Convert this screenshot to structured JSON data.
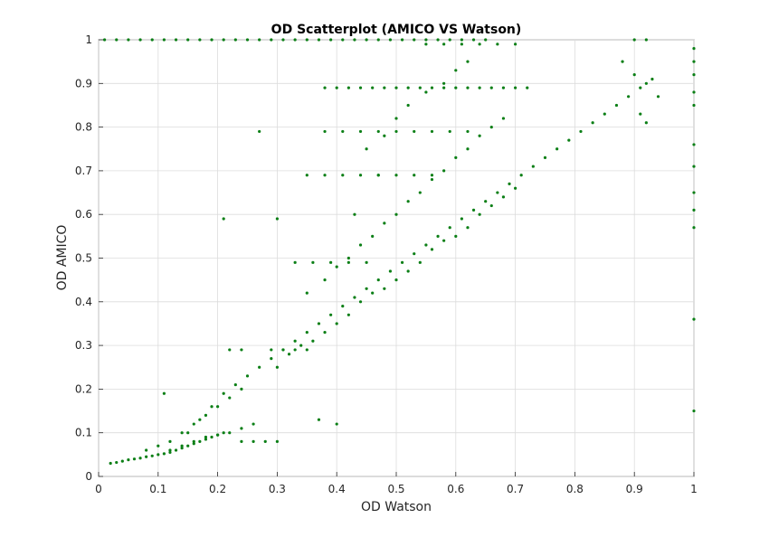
{
  "chart_data": {
    "type": "scatter",
    "title": "OD Scatterplot (AMICO VS Watson)",
    "xlabel": "OD Watson",
    "ylabel": "OD AMICO",
    "xlim": [
      0,
      1
    ],
    "ylim": [
      0,
      1
    ],
    "x_ticks": [
      "0",
      "0.1",
      "0.2",
      "0.3",
      "0.4",
      "0.5",
      "0.6",
      "0.7",
      "0.8",
      "0.9",
      "1"
    ],
    "y_ticks": [
      "0",
      "0.1",
      "0.2",
      "0.3",
      "0.4",
      "0.5",
      "0.6",
      "0.7",
      "0.8",
      "0.9",
      "1"
    ],
    "grid": true,
    "marker_color": "#0b7f16",
    "series": [
      {
        "points": [
          [
            0.02,
            0.03
          ],
          [
            0.03,
            0.032
          ],
          [
            0.04,
            0.035
          ],
          [
            0.05,
            0.038
          ],
          [
            0.06,
            0.04
          ],
          [
            0.07,
            0.042
          ],
          [
            0.08,
            0.045
          ],
          [
            0.09,
            0.047
          ],
          [
            0.1,
            0.05
          ],
          [
            0.11,
            0.052
          ],
          [
            0.12,
            0.055
          ],
          [
            0.13,
            0.06
          ],
          [
            0.14,
            0.065
          ],
          [
            0.15,
            0.07
          ],
          [
            0.16,
            0.075
          ],
          [
            0.17,
            0.08
          ],
          [
            0.18,
            0.085
          ],
          [
            0.19,
            0.09
          ],
          [
            0.2,
            0.095
          ],
          [
            0.21,
            0.1
          ],
          [
            0.08,
            0.06
          ],
          [
            0.1,
            0.07
          ],
          [
            0.12,
            0.08
          ],
          [
            0.14,
            0.1
          ],
          [
            0.16,
            0.12
          ],
          [
            0.18,
            0.14
          ],
          [
            0.2,
            0.16
          ],
          [
            0.22,
            0.18
          ],
          [
            0.24,
            0.2
          ],
          [
            0.12,
            0.06
          ],
          [
            0.14,
            0.07
          ],
          [
            0.16,
            0.08
          ],
          [
            0.18,
            0.09
          ],
          [
            0.2,
            0.095
          ],
          [
            0.22,
            0.1
          ],
          [
            0.24,
            0.11
          ],
          [
            0.26,
            0.12
          ],
          [
            0.15,
            0.1
          ],
          [
            0.17,
            0.13
          ],
          [
            0.19,
            0.16
          ],
          [
            0.21,
            0.19
          ],
          [
            0.23,
            0.21
          ],
          [
            0.25,
            0.23
          ],
          [
            0.27,
            0.25
          ],
          [
            0.29,
            0.27
          ],
          [
            0.31,
            0.29
          ],
          [
            0.33,
            0.31
          ],
          [
            0.35,
            0.33
          ],
          [
            0.37,
            0.35
          ],
          [
            0.39,
            0.37
          ],
          [
            0.41,
            0.39
          ],
          [
            0.43,
            0.41
          ],
          [
            0.45,
            0.43
          ],
          [
            0.47,
            0.45
          ],
          [
            0.49,
            0.47
          ],
          [
            0.51,
            0.49
          ],
          [
            0.53,
            0.51
          ],
          [
            0.55,
            0.53
          ],
          [
            0.57,
            0.55
          ],
          [
            0.59,
            0.57
          ],
          [
            0.61,
            0.59
          ],
          [
            0.63,
            0.61
          ],
          [
            0.65,
            0.63
          ],
          [
            0.67,
            0.65
          ],
          [
            0.69,
            0.67
          ],
          [
            0.71,
            0.69
          ],
          [
            0.73,
            0.71
          ],
          [
            0.75,
            0.73
          ],
          [
            0.77,
            0.75
          ],
          [
            0.79,
            0.77
          ],
          [
            0.81,
            0.79
          ],
          [
            0.83,
            0.81
          ],
          [
            0.85,
            0.83
          ],
          [
            0.87,
            0.85
          ],
          [
            0.89,
            0.87
          ],
          [
            0.91,
            0.89
          ],
          [
            0.93,
            0.91
          ],
          [
            0.3,
            0.25
          ],
          [
            0.32,
            0.28
          ],
          [
            0.34,
            0.3
          ],
          [
            0.36,
            0.31
          ],
          [
            0.38,
            0.33
          ],
          [
            0.4,
            0.35
          ],
          [
            0.42,
            0.37
          ],
          [
            0.44,
            0.4
          ],
          [
            0.46,
            0.42
          ],
          [
            0.48,
            0.43
          ],
          [
            0.5,
            0.45
          ],
          [
            0.52,
            0.47
          ],
          [
            0.54,
            0.49
          ],
          [
            0.56,
            0.52
          ],
          [
            0.58,
            0.54
          ],
          [
            0.6,
            0.55
          ],
          [
            0.62,
            0.57
          ],
          [
            0.64,
            0.6
          ],
          [
            0.66,
            0.62
          ],
          [
            0.68,
            0.64
          ],
          [
            0.7,
            0.66
          ],
          [
            0.35,
            0.42
          ],
          [
            0.38,
            0.45
          ],
          [
            0.4,
            0.48
          ],
          [
            0.42,
            0.5
          ],
          [
            0.44,
            0.53
          ],
          [
            0.46,
            0.55
          ],
          [
            0.48,
            0.58
          ],
          [
            0.5,
            0.6
          ],
          [
            0.52,
            0.63
          ],
          [
            0.54,
            0.65
          ],
          [
            0.56,
            0.68
          ],
          [
            0.58,
            0.7
          ],
          [
            0.6,
            0.73
          ],
          [
            0.62,
            0.75
          ],
          [
            0.64,
            0.78
          ],
          [
            0.66,
            0.8
          ],
          [
            0.68,
            0.82
          ],
          [
            0.45,
            0.75
          ],
          [
            0.48,
            0.78
          ],
          [
            0.5,
            0.82
          ],
          [
            0.52,
            0.85
          ],
          [
            0.55,
            0.88
          ],
          [
            0.58,
            0.9
          ],
          [
            0.6,
            0.93
          ],
          [
            0.62,
            0.95
          ],
          [
            0.3,
            0.59
          ],
          [
            0.21,
            0.59
          ],
          [
            0.27,
            0.79
          ],
          [
            0.11,
            0.19
          ],
          [
            0.37,
            0.13
          ],
          [
            0.4,
            0.12
          ],
          [
            0.43,
            0.6
          ],
          [
            0.47,
            0.69
          ],
          [
            0.38,
            0.89
          ],
          [
            0.4,
            0.89
          ],
          [
            0.42,
            0.89
          ],
          [
            0.44,
            0.89
          ],
          [
            0.46,
            0.89
          ],
          [
            0.48,
            0.89
          ],
          [
            0.5,
            0.89
          ],
          [
            0.52,
            0.89
          ],
          [
            0.54,
            0.89
          ],
          [
            0.56,
            0.89
          ],
          [
            0.58,
            0.89
          ],
          [
            0.6,
            0.89
          ],
          [
            0.62,
            0.89
          ],
          [
            0.64,
            0.89
          ],
          [
            0.66,
            0.89
          ],
          [
            0.68,
            0.89
          ],
          [
            0.7,
            0.89
          ],
          [
            0.72,
            0.89
          ],
          [
            0.38,
            0.79
          ],
          [
            0.41,
            0.79
          ],
          [
            0.44,
            0.79
          ],
          [
            0.47,
            0.79
          ],
          [
            0.5,
            0.79
          ],
          [
            0.53,
            0.79
          ],
          [
            0.56,
            0.79
          ],
          [
            0.59,
            0.79
          ],
          [
            0.62,
            0.79
          ],
          [
            0.35,
            0.69
          ],
          [
            0.38,
            0.69
          ],
          [
            0.41,
            0.69
          ],
          [
            0.44,
            0.69
          ],
          [
            0.47,
            0.69
          ],
          [
            0.5,
            0.69
          ],
          [
            0.53,
            0.69
          ],
          [
            0.56,
            0.69
          ],
          [
            0.33,
            0.49
          ],
          [
            0.36,
            0.49
          ],
          [
            0.39,
            0.49
          ],
          [
            0.42,
            0.49
          ],
          [
            0.45,
            0.49
          ],
          [
            0.29,
            0.29
          ],
          [
            0.31,
            0.29
          ],
          [
            0.33,
            0.29
          ],
          [
            0.35,
            0.29
          ],
          [
            0.22,
            0.29
          ],
          [
            0.24,
            0.29
          ],
          [
            0.24,
            0.08
          ],
          [
            0.26,
            0.08
          ],
          [
            0.28,
            0.08
          ],
          [
            0.3,
            0.08
          ],
          [
            0.01,
            1.0
          ],
          [
            0.03,
            1.0
          ],
          [
            0.05,
            1.0
          ],
          [
            0.07,
            1.0
          ],
          [
            0.09,
            1.0
          ],
          [
            0.11,
            1.0
          ],
          [
            0.13,
            1.0
          ],
          [
            0.15,
            1.0
          ],
          [
            0.17,
            1.0
          ],
          [
            0.19,
            1.0
          ],
          [
            0.21,
            1.0
          ],
          [
            0.23,
            1.0
          ],
          [
            0.25,
            1.0
          ],
          [
            0.27,
            1.0
          ],
          [
            0.29,
            1.0
          ],
          [
            0.31,
            1.0
          ],
          [
            0.33,
            1.0
          ],
          [
            0.35,
            1.0
          ],
          [
            0.37,
            1.0
          ],
          [
            0.39,
            1.0
          ],
          [
            0.41,
            1.0
          ],
          [
            0.43,
            1.0
          ],
          [
            0.45,
            1.0
          ],
          [
            0.47,
            1.0
          ],
          [
            0.49,
            1.0
          ],
          [
            0.51,
            1.0
          ],
          [
            0.53,
            1.0
          ],
          [
            0.55,
            1.0
          ],
          [
            0.57,
            1.0
          ],
          [
            0.59,
            1.0
          ],
          [
            0.61,
            1.0
          ],
          [
            0.63,
            1.0
          ],
          [
            0.65,
            1.0
          ],
          [
            0.9,
            1.0
          ],
          [
            0.92,
            1.0
          ],
          [
            0.55,
            0.99
          ],
          [
            0.58,
            0.99
          ],
          [
            0.61,
            0.99
          ],
          [
            0.64,
            0.99
          ],
          [
            0.67,
            0.99
          ],
          [
            0.7,
            0.99
          ],
          [
            0.88,
            0.95
          ],
          [
            0.9,
            0.92
          ],
          [
            0.92,
            0.9
          ],
          [
            0.94,
            0.87
          ],
          [
            0.91,
            0.83
          ],
          [
            0.92,
            0.81
          ],
          [
            1.0,
            0.98
          ],
          [
            1.0,
            0.95
          ],
          [
            1.0,
            0.92
          ],
          [
            1.0,
            0.88
          ],
          [
            1.0,
            0.85
          ],
          [
            1.0,
            0.76
          ],
          [
            1.0,
            0.71
          ],
          [
            1.0,
            0.65
          ],
          [
            1.0,
            0.61
          ],
          [
            1.0,
            0.57
          ],
          [
            1.0,
            0.36
          ],
          [
            1.0,
            0.15
          ]
        ]
      }
    ]
  }
}
